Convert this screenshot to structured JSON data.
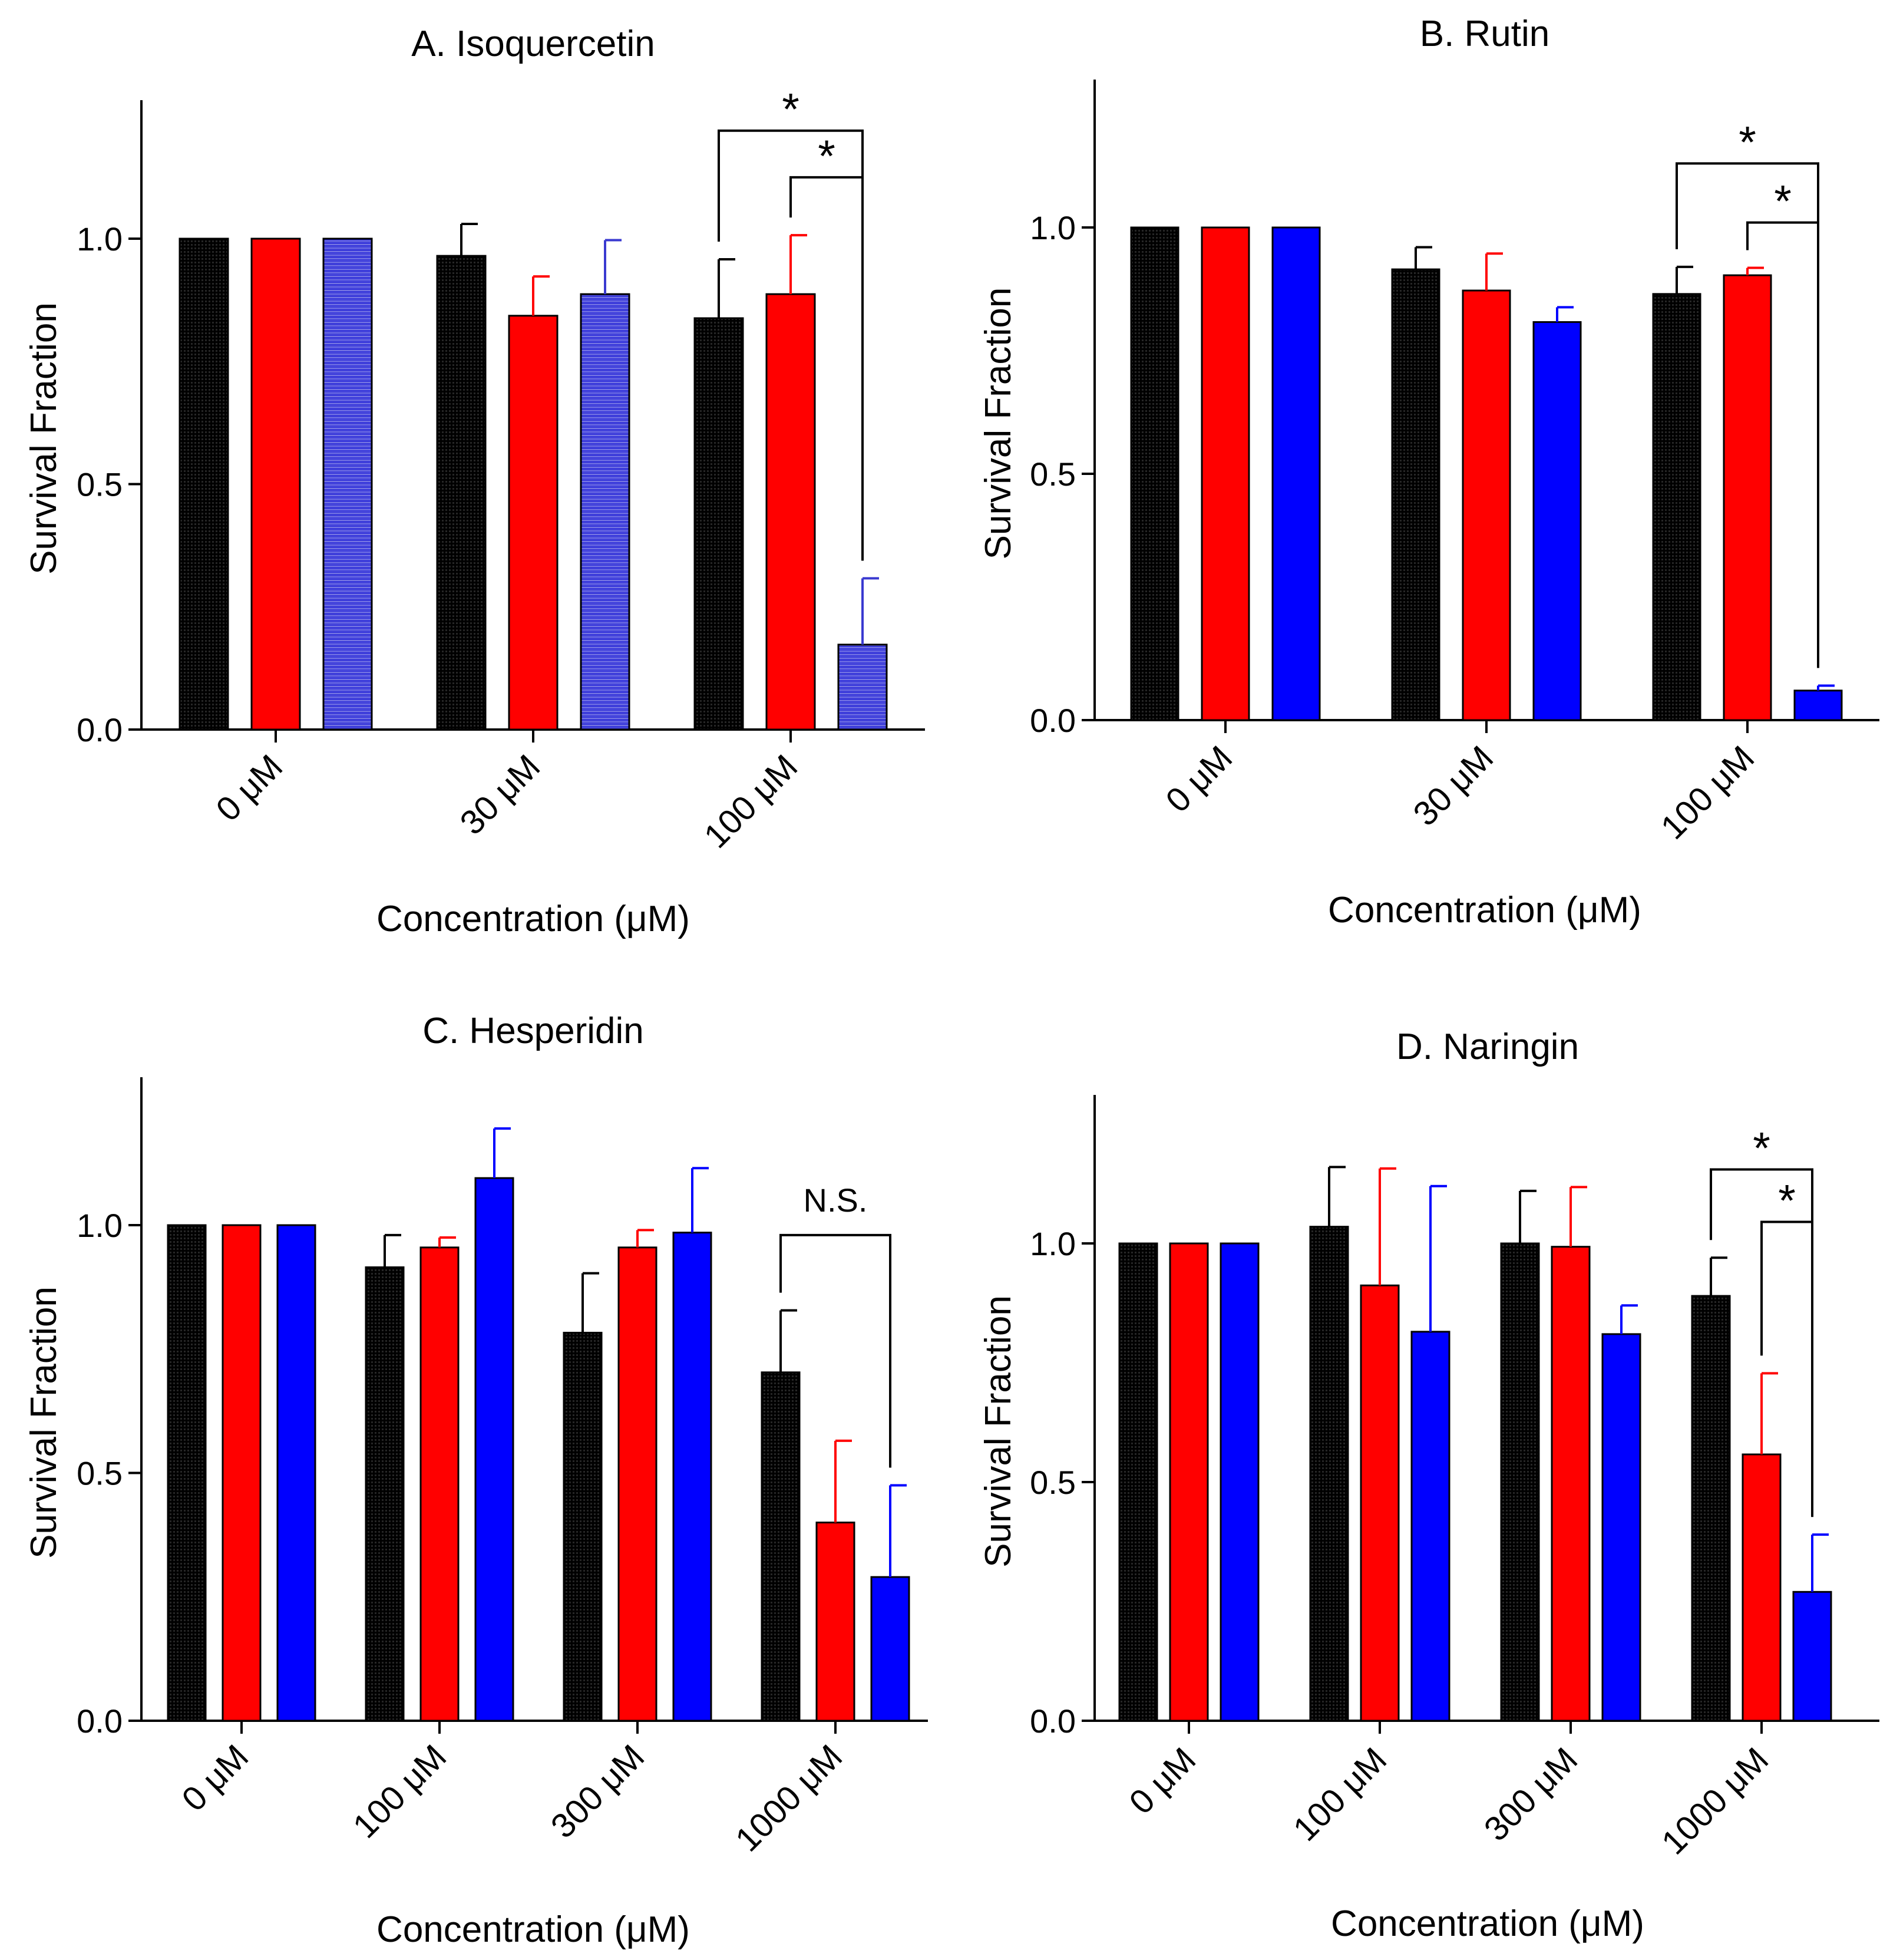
{
  "chart_data": [
    {
      "panel": "A",
      "type": "bar",
      "title": "A. Isoquercetin",
      "xlabel": "Concentration (μM)",
      "ylabel": "Survival Fraction",
      "ylim": [
        0,
        1.25
      ],
      "yticks": [
        "0.0",
        "0.5",
        "1.0"
      ],
      "categories": [
        "0 μM",
        "30 μM",
        "100 μM"
      ],
      "series": [
        {
          "color": "#111111",
          "values": [
            1.0,
            0.965,
            0.838
          ],
          "errors": [
            0.0,
            0.065,
            0.12
          ]
        },
        {
          "color": "#ff0000",
          "values": [
            1.0,
            0.843,
            0.887
          ],
          "errors": [
            0.0,
            0.08,
            0.12
          ]
        },
        {
          "color": "#3a3ad0",
          "values": [
            1.0,
            0.887,
            0.173
          ],
          "errors": [
            0.0,
            0.11,
            0.135
          ]
        }
      ],
      "annotations": [
        {
          "label": "*",
          "group": 2,
          "from_series": 0,
          "to_series": 2,
          "bar_y": 1.22
        },
        {
          "label": "*",
          "group": 2,
          "from_series": 1,
          "to_series": 2,
          "bar_y": 1.125
        }
      ]
    },
    {
      "panel": "B",
      "type": "bar",
      "title": "B. Rutin",
      "xlabel": "Concentration (μM)",
      "ylabel": "Survival Fraction",
      "ylim": [
        0,
        1.25
      ],
      "yticks": [
        "0.0",
        "0.5",
        "1.0"
      ],
      "categories": [
        "0 μM",
        "30 μM",
        "100 μM"
      ],
      "series": [
        {
          "color": "#111111",
          "values": [
            1.0,
            0.915,
            0.865
          ],
          "errors": [
            0.0,
            0.045,
            0.055
          ]
        },
        {
          "color": "#ff0000",
          "values": [
            1.0,
            0.872,
            0.903
          ],
          "errors": [
            0.0,
            0.075,
            0.015
          ]
        },
        {
          "color": "#0000ff",
          "values": [
            1.0,
            0.808,
            0.06
          ],
          "errors": [
            0.0,
            0.03,
            0.01
          ]
        }
      ],
      "annotations": [
        {
          "label": "*",
          "group": 2,
          "from_series": 0,
          "to_series": 2,
          "bar_y": 1.13
        },
        {
          "label": "*",
          "group": 2,
          "from_series": 1,
          "to_series": 2,
          "bar_y": 1.01
        }
      ]
    },
    {
      "panel": "C",
      "type": "bar",
      "title": "C. Hesperidin",
      "xlabel": "Concentration (μM)",
      "ylabel": "Survival Fraction",
      "ylim": [
        0,
        1.3
      ],
      "yticks": [
        "0.0",
        "0.5",
        "1.0"
      ],
      "categories": [
        "0 μM",
        "100 μM",
        "300 μM",
        "1000 μM"
      ],
      "series": [
        {
          "color": "#111111",
          "values": [
            1.0,
            0.915,
            0.783,
            0.703
          ],
          "errors": [
            0.0,
            0.065,
            0.12,
            0.125
          ]
        },
        {
          "color": "#ff0000",
          "values": [
            1.0,
            0.955,
            0.955,
            0.4
          ],
          "errors": [
            0.0,
            0.02,
            0.035,
            0.165
          ]
        },
        {
          "color": "#0000ff",
          "values": [
            1.0,
            1.095,
            0.985,
            0.29
          ],
          "errors": [
            0.0,
            0.1,
            0.13,
            0.185
          ]
        }
      ],
      "annotations": [
        {
          "label": "N.S.",
          "group": 3,
          "from_series": 0,
          "to_series": 2,
          "bar_y": 0.98
        }
      ]
    },
    {
      "panel": "D",
      "type": "bar",
      "title": "D. Naringin",
      "xlabel": "Concentration (μM)",
      "ylabel": "Survival Fraction",
      "ylim": [
        0,
        1.3
      ],
      "yticks": [
        "0.0",
        "0.5",
        "1.0"
      ],
      "categories": [
        "0 μM",
        "100 μM",
        "300 μM",
        "1000 μM"
      ],
      "series": [
        {
          "color": "#111111",
          "values": [
            1.0,
            1.035,
            1.0,
            0.89
          ],
          "errors": [
            0.0,
            0.125,
            0.11,
            0.08
          ]
        },
        {
          "color": "#ff0000",
          "values": [
            1.0,
            0.912,
            0.993,
            0.558
          ],
          "errors": [
            0.0,
            0.245,
            0.125,
            0.17
          ]
        },
        {
          "color": "#0000ff",
          "values": [
            1.0,
            0.815,
            0.81,
            0.27
          ],
          "errors": [
            0.0,
            0.305,
            0.06,
            0.12
          ]
        }
      ],
      "annotations": [
        {
          "label": "*",
          "group": 3,
          "from_series": 0,
          "to_series": 2,
          "bar_y": 1.155
        },
        {
          "label": "*",
          "group": 3,
          "from_series": 1,
          "to_series": 2,
          "bar_y": 1.045
        }
      ]
    }
  ]
}
